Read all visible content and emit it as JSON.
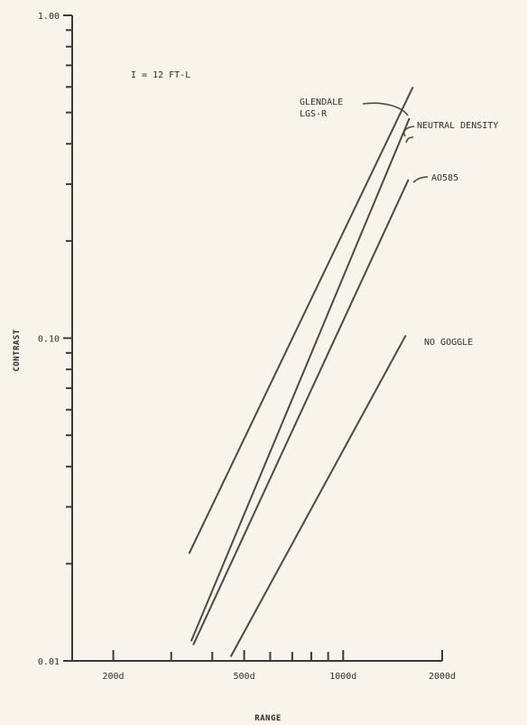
{
  "chart_data": {
    "type": "line",
    "xlabel": "RANGE",
    "ylabel": "CONTRAST",
    "x_scale": "log",
    "y_scale": "log",
    "xlim": [
      150,
      2000
    ],
    "ylim": [
      0.01,
      1.0
    ],
    "grid": false,
    "x_ticks": [
      {
        "value": 200,
        "label": "200d"
      },
      {
        "value": 500,
        "label": "500d"
      },
      {
        "value": 1000,
        "label": "1000d"
      },
      {
        "value": 2000,
        "label": "2000d"
      }
    ],
    "y_ticks": [
      {
        "value": 0.01,
        "label": "0.01"
      },
      {
        "value": 0.1,
        "label": "0.10"
      },
      {
        "value": 1.0,
        "label": "1.00"
      }
    ],
    "annotation": "I = 12 FT-L",
    "series": [
      {
        "name": "GLENDALE LGS-R",
        "x": [
          340,
          1630
        ],
        "y": [
          0.0215,
          0.6
        ]
      },
      {
        "name": "NEUTRAL DENSITY",
        "x": [
          345,
          1590
        ],
        "y": [
          0.0115,
          0.48
        ]
      },
      {
        "name": "AO585",
        "x": [
          350,
          1580
        ],
        "y": [
          0.0112,
          0.31
        ]
      },
      {
        "name": "NO GOGGLE",
        "x": [
          455,
          1550
        ],
        "y": [
          0.0103,
          0.102
        ]
      }
    ]
  }
}
